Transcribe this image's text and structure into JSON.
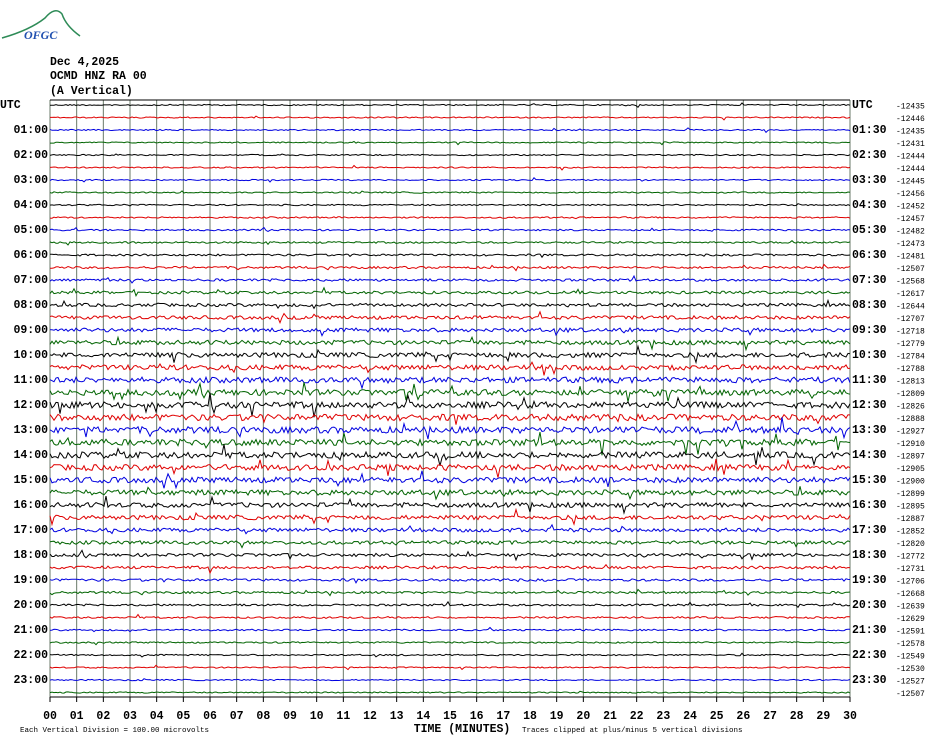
{
  "header": {
    "logo": "OFGC",
    "date": "Dec 4,2025",
    "station": "OCMD HNZ RA 00",
    "component": "(A Vertical)"
  },
  "left_labels": [
    "UTC",
    "01:00",
    "02:00",
    "03:00",
    "04:00",
    "05:00",
    "06:00",
    "07:00",
    "08:00",
    "09:00",
    "10:00",
    "11:00",
    "12:00",
    "13:00",
    "14:00",
    "15:00",
    "16:00",
    "17:00",
    "18:00",
    "19:00",
    "20:00",
    "21:00",
    "22:00",
    "23:00"
  ],
  "right_labels": [
    "UTC",
    "01:30",
    "02:30",
    "03:30",
    "04:30",
    "05:30",
    "06:30",
    "07:30",
    "08:30",
    "09:30",
    "10:30",
    "11:30",
    "12:30",
    "13:30",
    "14:30",
    "15:30",
    "16:30",
    "17:30",
    "18:30",
    "19:30",
    "20:30",
    "21:30",
    "22:30",
    "23:30"
  ],
  "trace_offsets": [
    -12435,
    -12446,
    -12435,
    -12431,
    -12444,
    -12444,
    -12445,
    -12456,
    -12452,
    -12457,
    -12482,
    -12473,
    -12481,
    -12507,
    -12568,
    -12617,
    -12644,
    -12707,
    -12718,
    -12779,
    -12784,
    -12788,
    -12813,
    -12809,
    -12826,
    -12888,
    -12927,
    -12910,
    -12897,
    -12905,
    -12900,
    -12899,
    -12895,
    -12887,
    -12852,
    -12820,
    -12772,
    -12731,
    -12706,
    -12668,
    -12639,
    -12629,
    -12591,
    -12578,
    -12549,
    -12530,
    -12527,
    -12507
  ],
  "trace_colors": [
    "#000000",
    "#e00000",
    "#0000e0",
    "#006400"
  ],
  "x_ticks": [
    "00",
    "01",
    "02",
    "03",
    "04",
    "05",
    "06",
    "07",
    "08",
    "09",
    "10",
    "11",
    "12",
    "13",
    "14",
    "15",
    "16",
    "17",
    "18",
    "19",
    "20",
    "21",
    "22",
    "23",
    "24",
    "25",
    "26",
    "27",
    "28",
    "29",
    "30"
  ],
  "footer": {
    "scale": "Each Vertical Division =  100.00 microvolts",
    "axis_title": "TIME (MINUTES)",
    "note": "Traces clipped at plus/minus 5 vertical divisions"
  }
}
